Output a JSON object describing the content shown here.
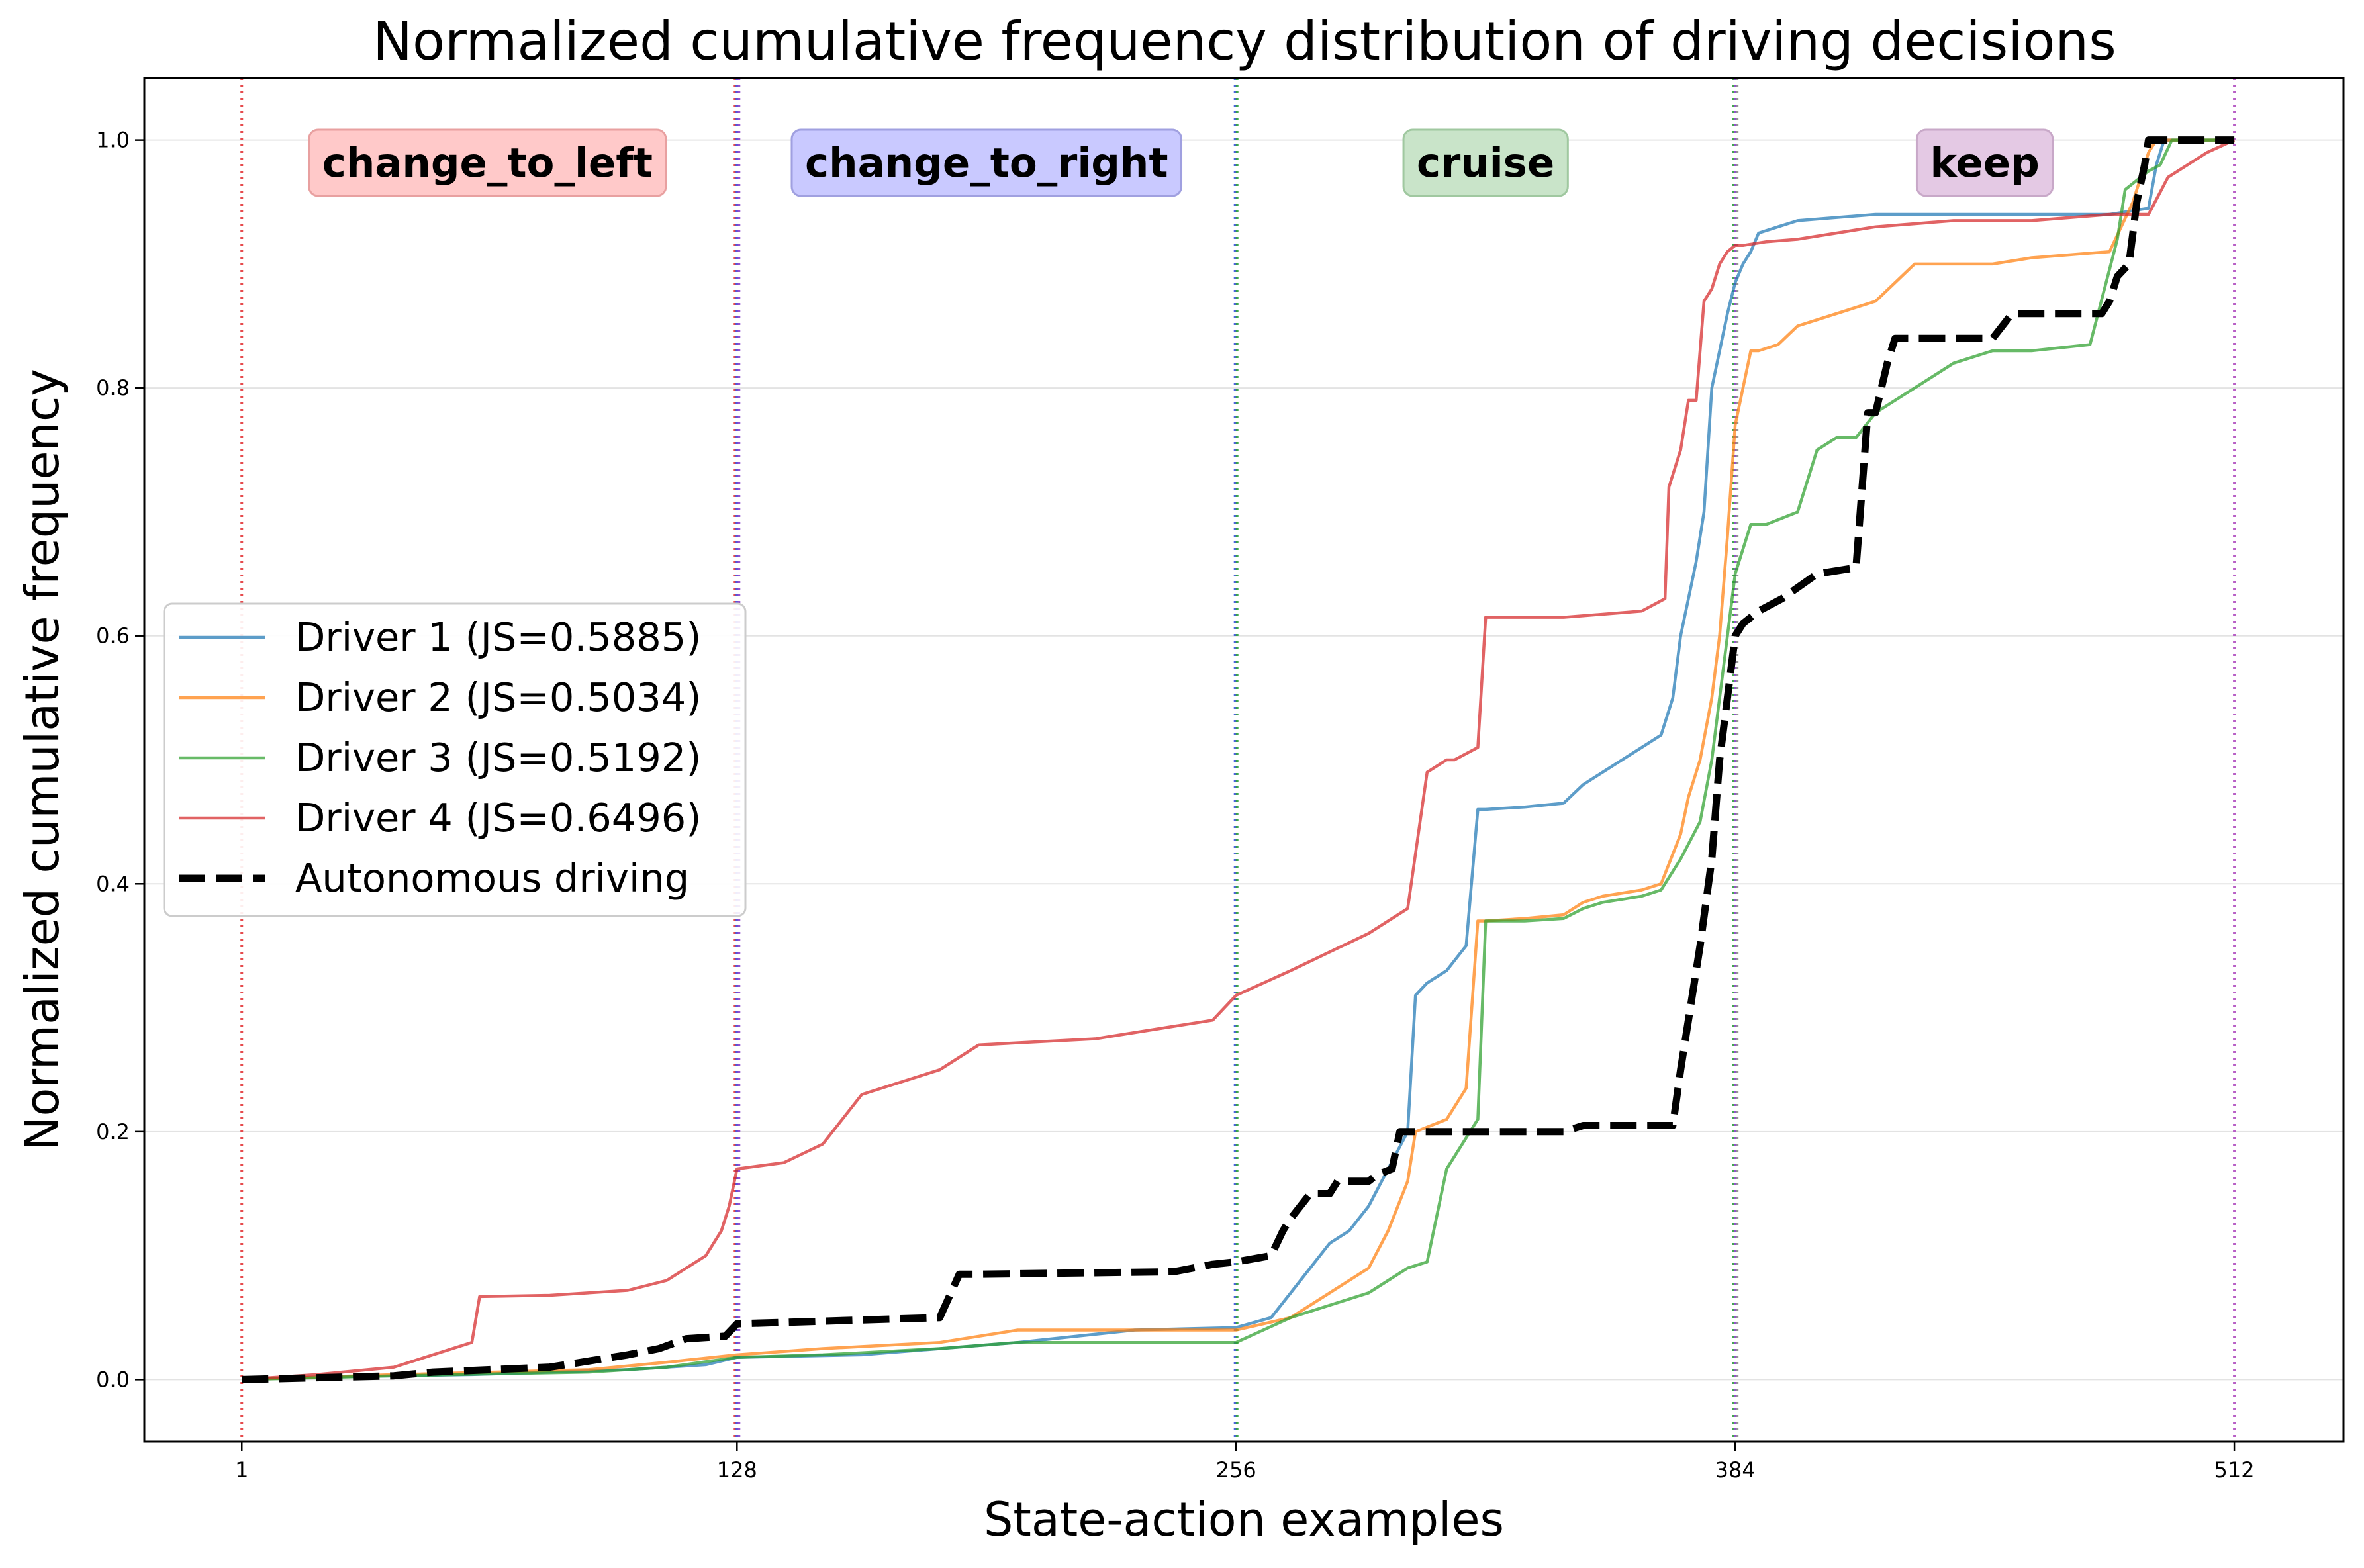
{
  "chart_data": {
    "type": "line",
    "title": "Normalized cumulative frequency distribution of driving decisions",
    "xlabel": "State-action examples",
    "ylabel": "Normalized cumulative frequency",
    "xlim": [
      -24,
      540
    ],
    "ylim": [
      -0.05,
      1.05
    ],
    "x_ticks": [
      1,
      128,
      256,
      384,
      512
    ],
    "y_ticks": [
      0.0,
      0.2,
      0.4,
      0.6,
      0.8,
      1.0
    ],
    "x_tick_labels": [
      "1",
      "128",
      "256",
      "384",
      "512"
    ],
    "y_tick_labels": [
      "0.0",
      "0.2",
      "0.4",
      "0.6",
      "0.8",
      "1.0"
    ],
    "grid": "horizontal",
    "legend_position": "center-left",
    "boundaries": [
      {
        "x": 1,
        "colors": [
          "#e3363a"
        ]
      },
      {
        "x": 128,
        "colors": [
          "#e3363a",
          "#3a4fe0",
          "#8a3fc9"
        ]
      },
      {
        "x": 256,
        "colors": [
          "#3a4fe0",
          "#2f9e3c"
        ]
      },
      {
        "x": 384,
        "colors": [
          "#2f9e3c",
          "#8a3fc9",
          "#888888"
        ]
      },
      {
        "x": 512,
        "colors": [
          "#b04fc0"
        ]
      }
    ],
    "regions": [
      {
        "label": "change_to_left",
        "x": 64,
        "fill": "#ffc9c9",
        "stroke": "#e8a0a0"
      },
      {
        "label": "change_to_right",
        "x": 192,
        "fill": "#c9c9ff",
        "stroke": "#a0a0e0"
      },
      {
        "label": "cruise",
        "x": 320,
        "fill": "#c9e4c9",
        "stroke": "#a0c8a0"
      },
      {
        "label": "keep",
        "x": 448,
        "fill": "#e4c9e4",
        "stroke": "#c8a8c8"
      }
    ],
    "series": [
      {
        "name": "Driver 1 (JS=0.5885)",
        "color": "#1f77b4",
        "style": "solid",
        "x": [
          1,
          20,
          60,
          100,
          120,
          128,
          160,
          200,
          230,
          256,
          265,
          270,
          275,
          280,
          285,
          290,
          295,
          300,
          302,
          305,
          310,
          315,
          318,
          320,
          330,
          340,
          345,
          350,
          355,
          360,
          365,
          368,
          370,
          372,
          374,
          376,
          378,
          380,
          382,
          384,
          386,
          388,
          390,
          395,
          400,
          420,
          440,
          470,
          480,
          490,
          492,
          494,
          500,
          505,
          512
        ],
        "y": [
          0.0,
          0.002,
          0.004,
          0.008,
          0.012,
          0.018,
          0.02,
          0.03,
          0.04,
          0.042,
          0.05,
          0.07,
          0.09,
          0.11,
          0.12,
          0.14,
          0.17,
          0.2,
          0.31,
          0.32,
          0.33,
          0.35,
          0.46,
          0.46,
          0.462,
          0.465,
          0.48,
          0.49,
          0.5,
          0.51,
          0.52,
          0.55,
          0.6,
          0.63,
          0.66,
          0.7,
          0.8,
          0.83,
          0.86,
          0.885,
          0.9,
          0.91,
          0.925,
          0.93,
          0.935,
          0.94,
          0.94,
          0.94,
          0.94,
          0.945,
          0.98,
          1.0,
          1.0,
          1.0,
          1.0
        ]
      },
      {
        "name": "Driver 2 (JS=0.5034)",
        "color": "#ff7f0e",
        "style": "solid",
        "x": [
          1,
          40,
          90,
          110,
          128,
          150,
          180,
          200,
          256,
          270,
          280,
          290,
          295,
          300,
          302,
          310,
          315,
          318,
          320,
          330,
          340,
          345,
          350,
          360,
          365,
          370,
          372,
          375,
          378,
          380,
          382,
          384,
          386,
          388,
          390,
          395,
          400,
          410,
          420,
          430,
          440,
          450,
          460,
          480,
          486,
          490,
          492,
          496,
          500,
          512
        ],
        "y": [
          0.0,
          0.004,
          0.008,
          0.014,
          0.02,
          0.025,
          0.03,
          0.04,
          0.04,
          0.05,
          0.07,
          0.09,
          0.12,
          0.16,
          0.2,
          0.21,
          0.235,
          0.37,
          0.37,
          0.372,
          0.375,
          0.385,
          0.39,
          0.395,
          0.4,
          0.44,
          0.47,
          0.5,
          0.55,
          0.6,
          0.68,
          0.77,
          0.8,
          0.83,
          0.83,
          0.835,
          0.85,
          0.86,
          0.87,
          0.9,
          0.9,
          0.9,
          0.905,
          0.91,
          0.95,
          0.99,
          1.0,
          1.0,
          1.0,
          1.0
        ]
      },
      {
        "name": "Driver 3 (JS=0.5192)",
        "color": "#2ca02c",
        "style": "solid",
        "x": [
          1,
          40,
          90,
          110,
          128,
          150,
          180,
          200,
          256,
          270,
          280,
          290,
          300,
          305,
          310,
          318,
          320,
          330,
          340,
          345,
          350,
          360,
          365,
          370,
          375,
          378,
          380,
          382,
          384,
          386,
          388,
          392,
          400,
          405,
          410,
          415,
          420,
          430,
          440,
          450,
          460,
          475,
          482,
          484,
          488,
          490,
          493,
          496,
          500,
          512
        ],
        "y": [
          0.0,
          0.003,
          0.006,
          0.01,
          0.018,
          0.02,
          0.025,
          0.03,
          0.03,
          0.05,
          0.06,
          0.07,
          0.09,
          0.095,
          0.17,
          0.21,
          0.37,
          0.37,
          0.372,
          0.38,
          0.385,
          0.39,
          0.395,
          0.42,
          0.45,
          0.5,
          0.55,
          0.6,
          0.65,
          0.67,
          0.69,
          0.69,
          0.7,
          0.75,
          0.76,
          0.76,
          0.78,
          0.8,
          0.82,
          0.83,
          0.83,
          0.835,
          0.92,
          0.96,
          0.97,
          0.975,
          0.98,
          1.0,
          1.0,
          1.0
        ]
      },
      {
        "name": "Driver 4 (JS=0.6496)",
        "color": "#d62728",
        "style": "solid",
        "x": [
          1,
          20,
          40,
          50,
          60,
          62,
          80,
          100,
          110,
          120,
          124,
          126,
          128,
          140,
          150,
          155,
          160,
          170,
          180,
          190,
          220,
          250,
          256,
          270,
          290,
          300,
          305,
          310,
          312,
          318,
          320,
          340,
          360,
          366,
          367,
          370,
          372,
          374,
          376,
          378,
          380,
          382,
          384,
          386,
          392,
          400,
          420,
          440,
          460,
          480,
          490,
          495,
          500,
          505,
          512
        ],
        "y": [
          0.0,
          0.004,
          0.01,
          0.02,
          0.03,
          0.067,
          0.068,
          0.072,
          0.08,
          0.1,
          0.12,
          0.14,
          0.17,
          0.175,
          0.19,
          0.21,
          0.23,
          0.24,
          0.25,
          0.27,
          0.275,
          0.29,
          0.31,
          0.33,
          0.36,
          0.38,
          0.49,
          0.5,
          0.5,
          0.51,
          0.615,
          0.615,
          0.62,
          0.63,
          0.72,
          0.75,
          0.79,
          0.79,
          0.87,
          0.88,
          0.9,
          0.91,
          0.915,
          0.915,
          0.918,
          0.92,
          0.93,
          0.935,
          0.935,
          0.94,
          0.94,
          0.97,
          0.98,
          0.99,
          1.0
        ]
      },
      {
        "name": "Autonomous driving",
        "color": "#000000",
        "style": "dashed",
        "x": [
          1,
          40,
          50,
          80,
          90,
          100,
          108,
          115,
          125,
          128,
          180,
          185,
          190,
          240,
          250,
          256,
          265,
          268,
          270,
          275,
          280,
          282,
          290,
          292,
          296,
          298,
          300,
          305,
          340,
          345,
          368,
          370,
          375,
          378,
          380,
          382,
          384,
          386,
          390,
          396,
          405,
          415,
          418,
          420,
          423,
          425,
          430,
          450,
          455,
          470,
          478,
          480,
          482,
          485,
          487,
          489,
          490,
          512
        ],
        "y": [
          0.0,
          0.003,
          0.006,
          0.01,
          0.015,
          0.02,
          0.025,
          0.033,
          0.035,
          0.045,
          0.05,
          0.085,
          0.085,
          0.087,
          0.093,
          0.095,
          0.1,
          0.12,
          0.13,
          0.15,
          0.15,
          0.16,
          0.16,
          0.165,
          0.17,
          0.2,
          0.2,
          0.2,
          0.2,
          0.205,
          0.205,
          0.25,
          0.35,
          0.42,
          0.5,
          0.55,
          0.6,
          0.61,
          0.62,
          0.63,
          0.65,
          0.655,
          0.78,
          0.78,
          0.82,
          0.84,
          0.84,
          0.84,
          0.86,
          0.86,
          0.86,
          0.87,
          0.89,
          0.9,
          0.95,
          0.98,
          1.0,
          1.0
        ]
      }
    ]
  }
}
